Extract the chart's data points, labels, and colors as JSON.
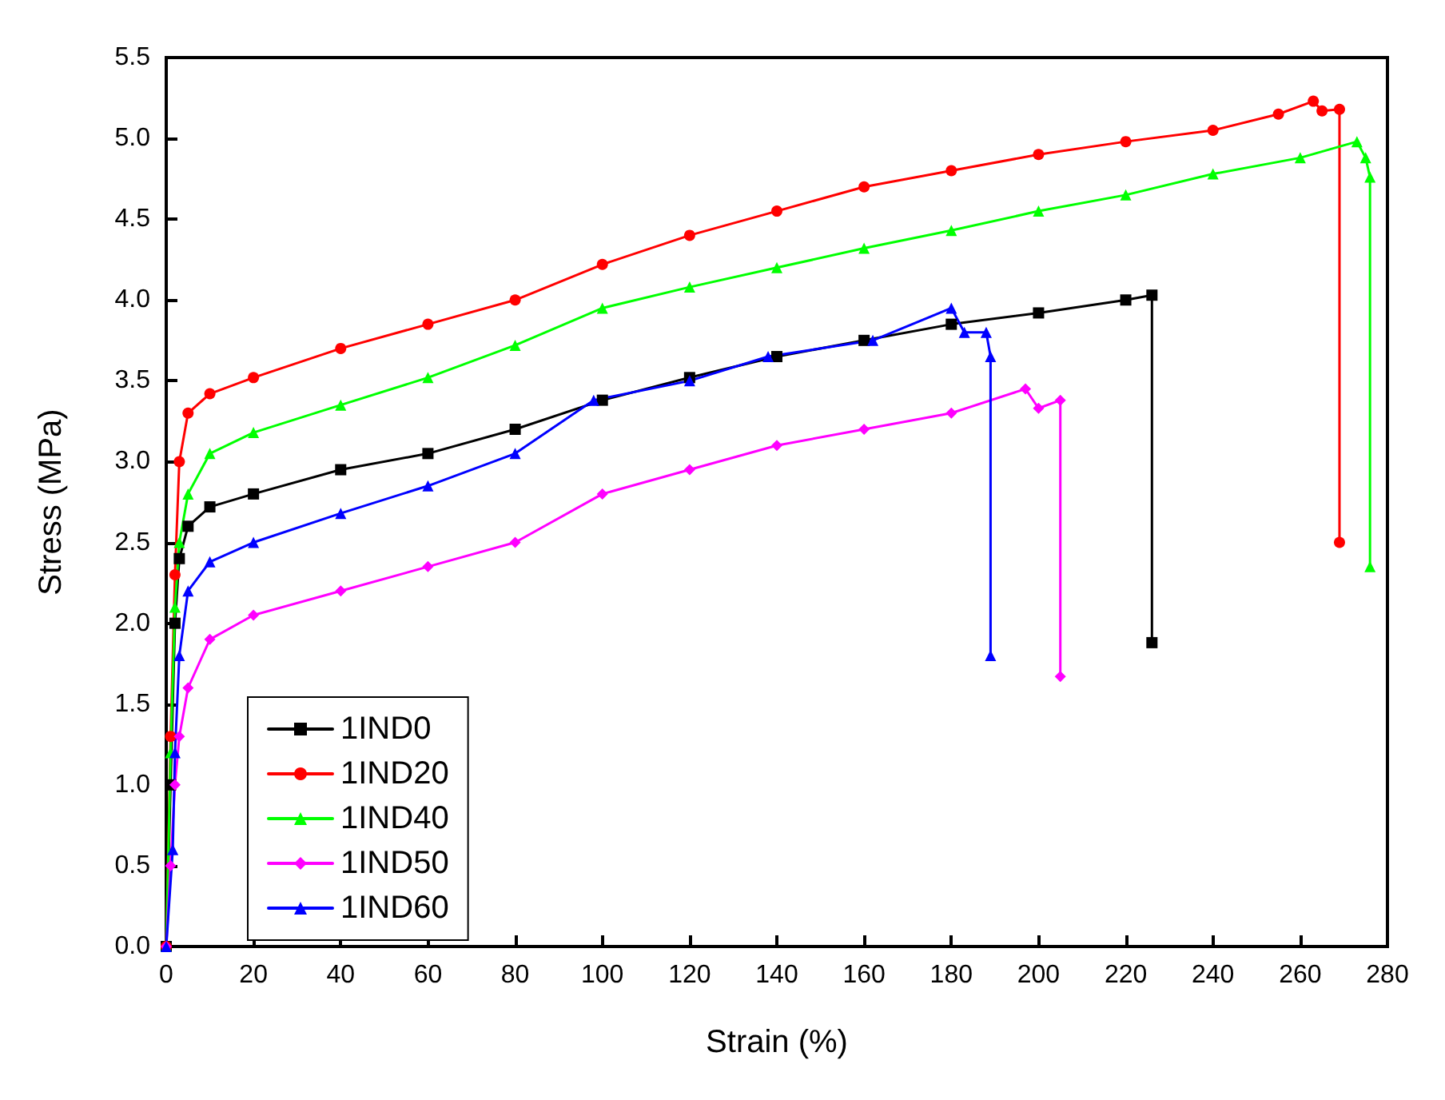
{
  "chart_data": {
    "type": "line",
    "xlabel": "Strain (%)",
    "ylabel": "Stress (MPa)",
    "xlim": [
      0,
      280
    ],
    "xticks": [
      0,
      20,
      40,
      60,
      80,
      100,
      120,
      140,
      160,
      180,
      200,
      220,
      240,
      260,
      280
    ],
    "ylim": [
      0,
      5.5
    ],
    "yticks": [
      {
        "value": 0,
        "label": "0.0"
      },
      {
        "value": 0.5,
        "label": "0.5"
      },
      {
        "value": 1,
        "label": "1.0"
      },
      {
        "value": 1.5,
        "label": "1.5"
      },
      {
        "value": 2,
        "label": "2.0"
      },
      {
        "value": 2.5,
        "label": "2.5"
      },
      {
        "value": 3,
        "label": "3.0"
      },
      {
        "value": 3.5,
        "label": "3.5"
      },
      {
        "value": 4,
        "label": "4.0"
      },
      {
        "value": 4.5,
        "label": "4.5"
      },
      {
        "value": 5,
        "label": "5.0"
      },
      {
        "value": 5.5,
        "label": "5.5"
      }
    ],
    "grid": false,
    "legend": "bottom left",
    "line_style": "solid",
    "series": [
      {
        "name": "1IND0",
        "color": "#000000",
        "marker": "square",
        "x": [
          0,
          1,
          2,
          3,
          5,
          10,
          20,
          40,
          60,
          80,
          100,
          120,
          140,
          160,
          180,
          200,
          220,
          226,
          226
        ],
        "values": [
          0,
          1.0,
          2.0,
          2.4,
          2.6,
          2.72,
          2.8,
          2.95,
          3.05,
          3.2,
          3.38,
          3.52,
          3.65,
          3.75,
          3.85,
          3.92,
          4.0,
          4.03,
          1.88
        ]
      },
      {
        "name": "1IND20",
        "color": "#ff0000",
        "marker": "circle",
        "x": [
          0,
          1,
          2,
          3,
          5,
          10,
          20,
          40,
          60,
          80,
          100,
          120,
          140,
          160,
          180,
          200,
          220,
          240,
          255,
          263,
          265,
          269,
          269
        ],
        "values": [
          0,
          1.3,
          2.3,
          3.0,
          3.3,
          3.42,
          3.52,
          3.7,
          3.85,
          4.0,
          4.22,
          4.4,
          4.55,
          4.7,
          4.8,
          4.9,
          4.98,
          5.05,
          5.15,
          5.23,
          5.17,
          5.18,
          2.5
        ]
      },
      {
        "name": "1IND40",
        "color": "#00ff00",
        "marker": "triangle",
        "x": [
          0,
          1,
          2,
          3,
          5,
          10,
          20,
          40,
          60,
          80,
          100,
          120,
          140,
          160,
          180,
          200,
          220,
          240,
          260,
          273,
          275,
          276,
          276
        ],
        "values": [
          0,
          1.2,
          2.1,
          2.5,
          2.8,
          3.05,
          3.18,
          3.35,
          3.52,
          3.72,
          3.95,
          4.08,
          4.2,
          4.32,
          4.43,
          4.55,
          4.65,
          4.78,
          4.88,
          4.98,
          4.88,
          4.76,
          2.35
        ]
      },
      {
        "name": "1IND50",
        "color": "#ff00ff",
        "marker": "diamond",
        "x": [
          0,
          1,
          2,
          3,
          5,
          10,
          20,
          40,
          60,
          80,
          100,
          120,
          140,
          160,
          180,
          197,
          200,
          205,
          205
        ],
        "values": [
          0,
          0.5,
          1.0,
          1.3,
          1.6,
          1.9,
          2.05,
          2.2,
          2.35,
          2.5,
          2.8,
          2.95,
          3.1,
          3.2,
          3.3,
          3.45,
          3.33,
          3.38,
          1.67
        ]
      },
      {
        "name": "1IND60",
        "color": "#0000ff",
        "marker": "triangle",
        "x": [
          0,
          1.5,
          2,
          3,
          5,
          10,
          20,
          40,
          60,
          80,
          98,
          120,
          138,
          162,
          180,
          183,
          188,
          189,
          189
        ],
        "values": [
          0,
          0.6,
          1.2,
          1.8,
          2.2,
          2.38,
          2.5,
          2.68,
          2.85,
          3.05,
          3.38,
          3.5,
          3.65,
          3.75,
          3.95,
          3.8,
          3.8,
          3.65,
          1.8
        ]
      }
    ]
  }
}
